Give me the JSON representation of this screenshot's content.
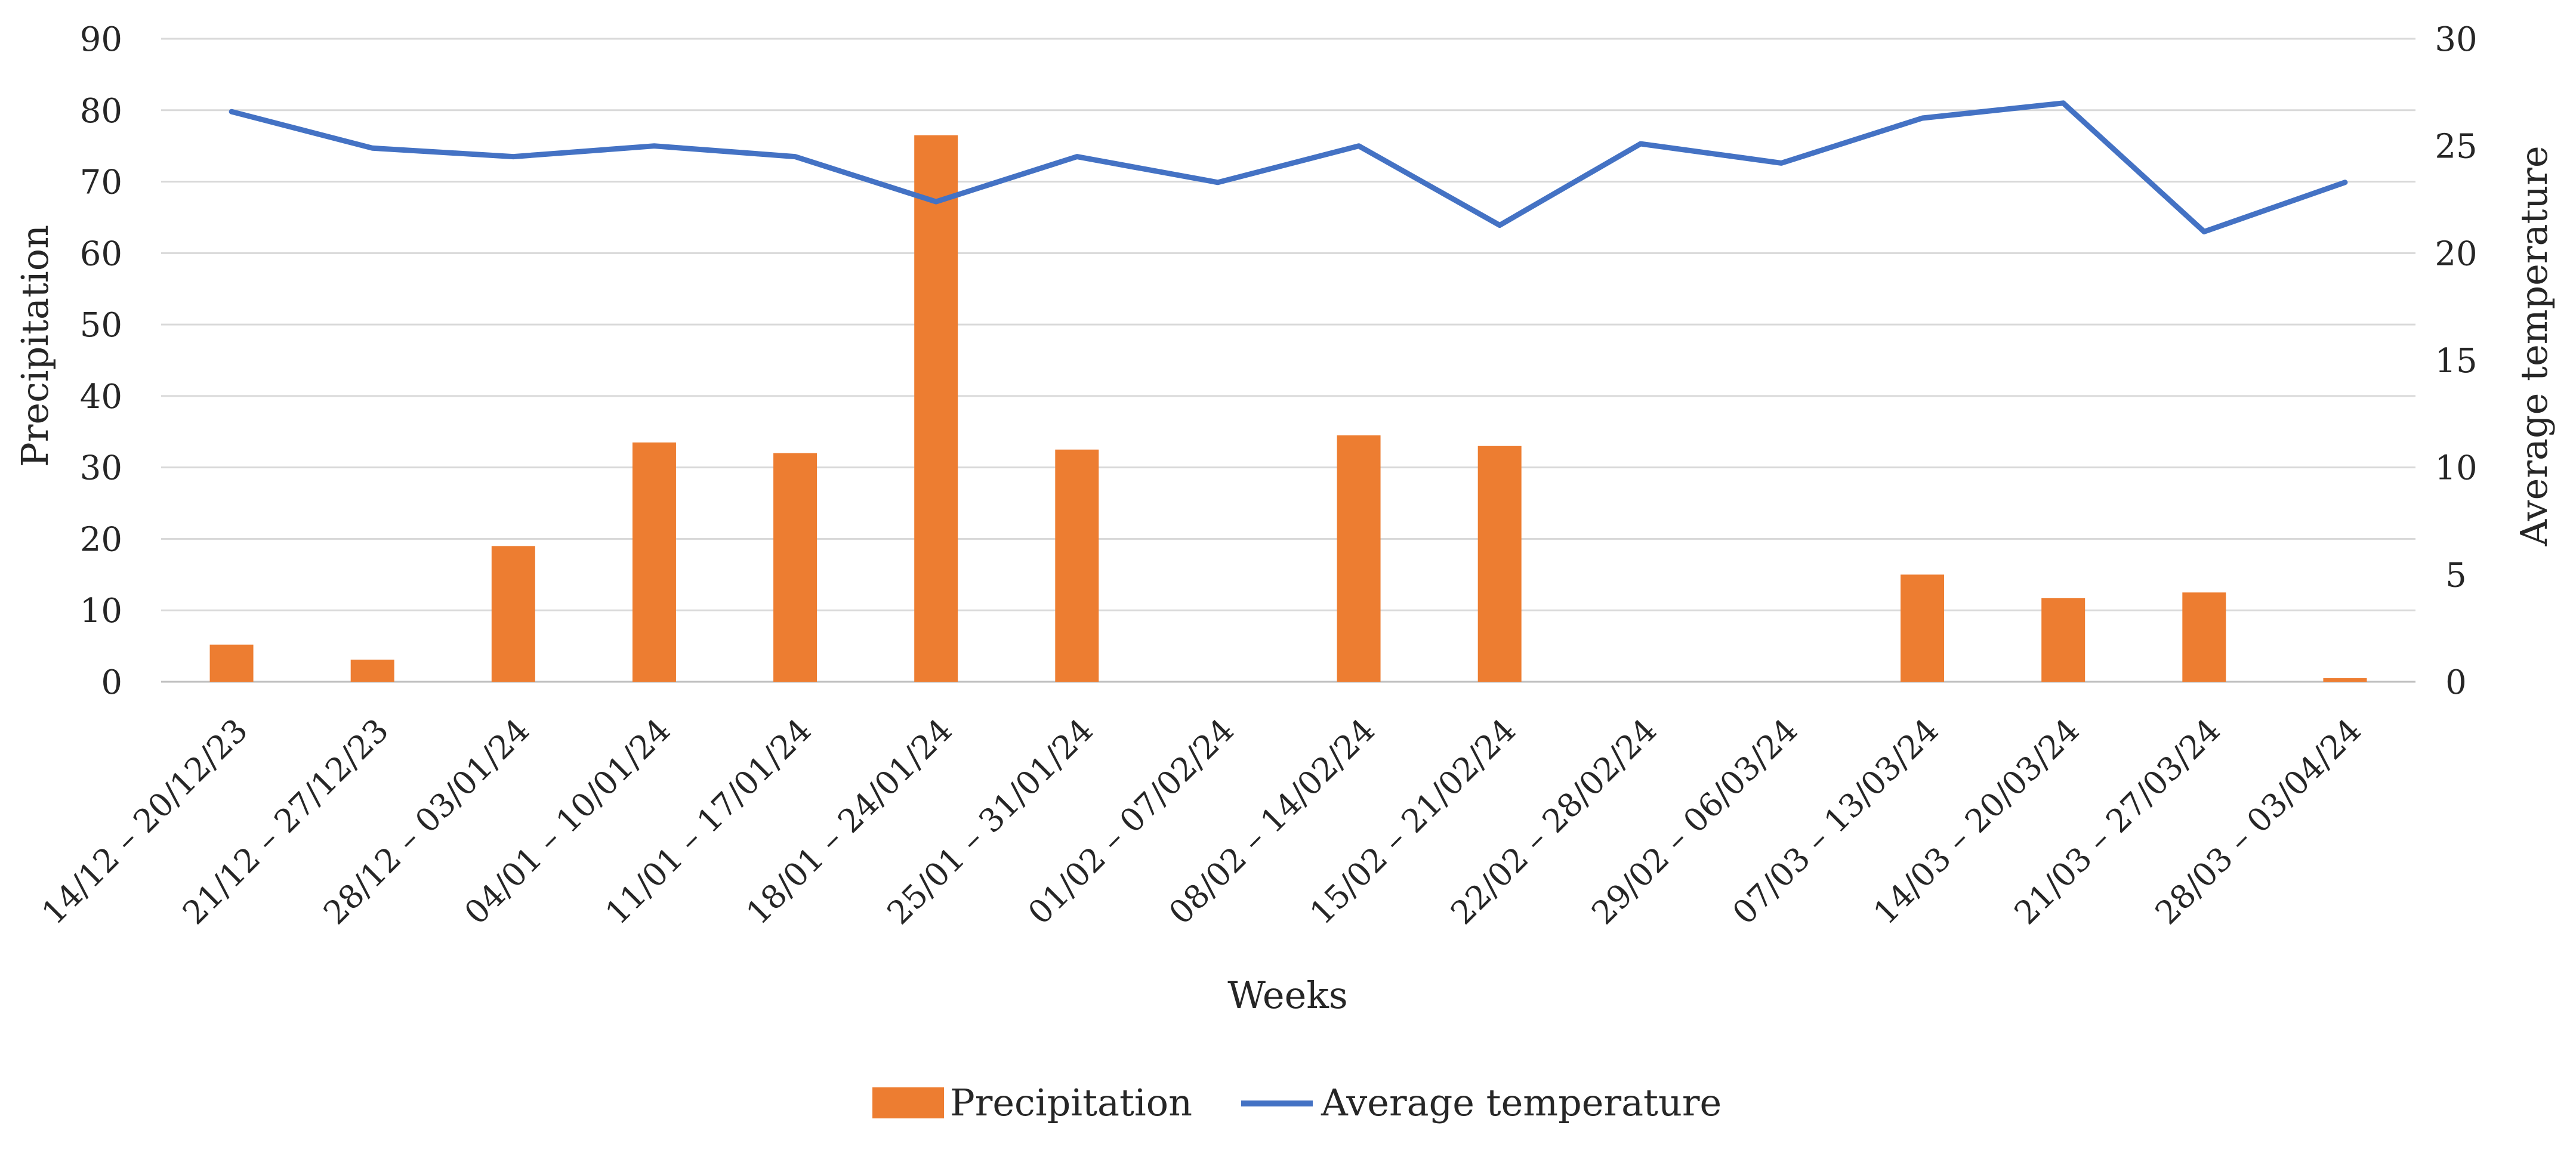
{
  "chart_data": {
    "type": "bar+line",
    "xlabel": "Weeks",
    "categories": [
      "14/12 – 20/12/23",
      "21/12 – 27/12/23",
      "28/12 – 03/01/24",
      "04/01 – 10/01/24",
      "11/01 – 17/01/24",
      "18/01 – 24/01/24",
      "25/01 – 31/01/24",
      "01/02 – 07/02/24",
      "08/02 – 14/02/24",
      "15/02 – 21/02/24",
      "22/02 – 28/02/24",
      "29/02 – 06/03/24",
      "07/03 – 13/03/24",
      "14/03 – 20/03/24",
      "21/03 – 27/03/24",
      "28/03 – 03/04/24"
    ],
    "series": [
      {
        "name": "Precipitation",
        "type": "bar",
        "axis": "left",
        "color": "#ED7D31",
        "values": [
          5.2,
          3.1,
          19.0,
          33.5,
          32.0,
          76.5,
          32.5,
          0,
          34.5,
          33.0,
          0,
          0,
          15.0,
          11.7,
          12.5,
          0.5
        ]
      },
      {
        "name": "Average temperature",
        "type": "line",
        "axis": "right",
        "color": "#4472C4",
        "values": [
          26.6,
          24.9,
          24.5,
          25.0,
          24.5,
          22.4,
          24.5,
          23.3,
          25.0,
          21.3,
          25.1,
          24.2,
          26.3,
          27.0,
          21.0,
          23.3
        ]
      }
    ],
    "y_left": {
      "label": "Precipitation",
      "lim": [
        0,
        90
      ],
      "ticks": [
        0,
        10,
        20,
        30,
        40,
        50,
        60,
        70,
        80,
        90
      ]
    },
    "y_right": {
      "label": "Average temperature",
      "lim": [
        0,
        30
      ],
      "ticks": [
        0,
        5,
        10,
        15,
        20,
        25,
        30
      ]
    },
    "grid": true,
    "legend": {
      "position": "bottom",
      "entries": [
        "Precipitation",
        "Average temperature"
      ]
    }
  }
}
